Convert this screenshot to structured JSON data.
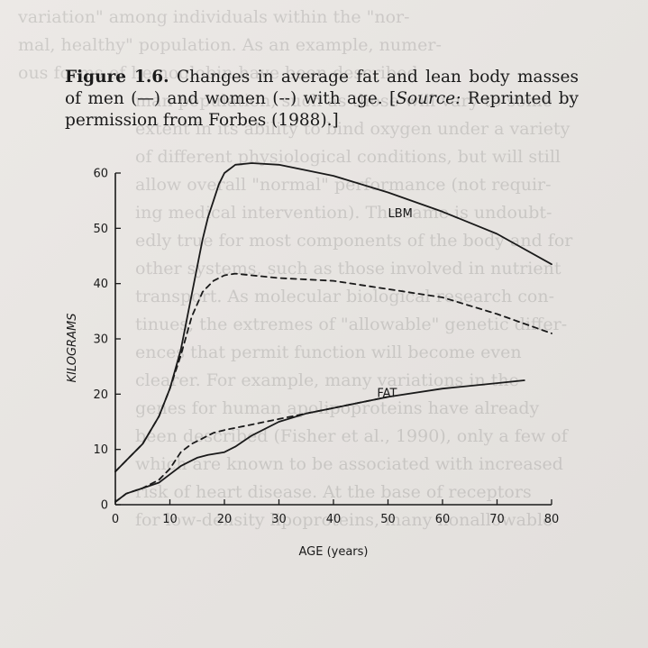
{
  "caption": {
    "figure_label": "Figure 1.6.",
    "text": " Changes in average fat and lean body masses of men (—) and women (--) with age. [",
    "source_label": "Source:",
    "source_text": " Reprinted by permission from Forbes (1988).]"
  },
  "bleed_lines": [
    "variation\" among individuals within the \"nor-",
    "mal, healthy\" population. As an example, numer-",
    "ous forms of hemoglobin have been described",
    "man population, such as those will vary to some",
    "extent in its ability to bind oxygen under a variety",
    "of different physiological conditions, but will still",
    "allow overall \"normal\" performance (not requir-",
    "ing medical intervention). The same is undoubt-",
    "edly true for most components of the body and for",
    "other systems, such as those involved in nutrient",
    "transport. As molecular biological research con-",
    "tinues, the extremes of \"allowable\" genetic differ-",
    "ences that permit function will become even",
    "clearer. For example, many variations in the",
    "genes for human apolipoproteins have already",
    "been described (Fisher et al., 1990), only a few of",
    "which are known to be associated with increased",
    "risk of heart disease. At the base of receptors",
    "for low-density lipoproteins, many nonallowable"
  ],
  "chart_data": {
    "type": "line",
    "title": "",
    "xlabel": "AGE (years)",
    "ylabel": "KILOGRAMS",
    "xlim": [
      0,
      80
    ],
    "ylim": [
      0,
      60
    ],
    "xticks": [
      0,
      10,
      20,
      30,
      40,
      50,
      60,
      70,
      80
    ],
    "yticks": [
      0,
      10,
      20,
      30,
      40,
      50,
      60
    ],
    "grid": false,
    "legend": "none (described in caption)",
    "annotations": [
      {
        "text": "LBM",
        "x": 50,
        "y": 52
      },
      {
        "text": "FAT",
        "x": 48,
        "y": 19.5
      }
    ],
    "series": [
      {
        "name": "LBM men",
        "style": "solid",
        "x": [
          0,
          2,
          5,
          8,
          10,
          12,
          14,
          16,
          17,
          18,
          19,
          20,
          22,
          25,
          30,
          40,
          50,
          60,
          70,
          80
        ],
        "y": [
          6,
          8,
          11,
          16,
          21,
          28,
          38,
          48,
          52,
          55,
          58,
          60,
          61.5,
          61.8,
          61.5,
          59.5,
          56.5,
          53,
          49,
          43.5
        ]
      },
      {
        "name": "LBM women",
        "style": "dashed",
        "x": [
          0,
          2,
          5,
          8,
          10,
          12,
          14,
          16,
          17,
          18,
          19,
          20,
          22,
          25,
          30,
          40,
          50,
          60,
          70,
          80
        ],
        "y": [
          6,
          8,
          11,
          16,
          21,
          27,
          34,
          38.5,
          39.5,
          40.5,
          41,
          41.5,
          41.8,
          41.5,
          41,
          40.5,
          39,
          37.5,
          34.5,
          31
        ]
      },
      {
        "name": "FAT men",
        "style": "solid",
        "x": [
          0,
          2,
          5,
          8,
          10,
          12,
          14,
          15,
          17,
          20,
          22,
          25,
          30,
          35,
          40,
          50,
          60,
          70,
          75
        ],
        "y": [
          0.5,
          2,
          3,
          4,
          5.5,
          7,
          8,
          8.5,
          9,
          9.5,
          10.5,
          12.5,
          15,
          16.5,
          17.5,
          19.5,
          21,
          22,
          22.5
        ]
      },
      {
        "name": "FAT women",
        "style": "dashed",
        "x": [
          0,
          2,
          5,
          8,
          10,
          12,
          14,
          16,
          18,
          20,
          25,
          30,
          40,
          45,
          50
        ],
        "y": [
          0.5,
          2,
          3,
          4.5,
          6.5,
          9.5,
          11,
          12,
          13,
          13.5,
          14.5,
          15.5,
          17.5,
          18.5,
          19.5
        ]
      }
    ]
  }
}
